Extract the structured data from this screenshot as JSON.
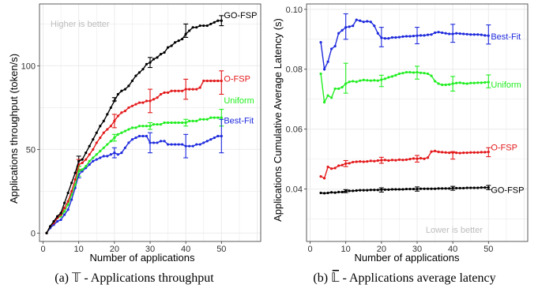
{
  "colors": {
    "GO-FSP": "#000000",
    "O-FSP": "#e31a1c",
    "Uniform": "#22ee22",
    "Best-Fit": "#1f2bdd",
    "grid": "#ebebeb",
    "panel_border": "#333333",
    "note": "#bdbdbd"
  },
  "captions": {
    "a": "(a) 𝕋 - Applications throughput",
    "b": "(b) 𝕃̅ - Applications average latency"
  },
  "chart_data": [
    {
      "type": "line",
      "xlabel": "Number of applications",
      "ylabel": "Applications throughput (token/s)",
      "annotation": "Higher is better",
      "xlim": [
        -1,
        61
      ],
      "ylim": [
        -5,
        137
      ],
      "x_ticks": [
        0,
        10,
        20,
        30,
        40,
        50
      ],
      "y_ticks": [
        0,
        50,
        100
      ],
      "x_tick_labels": [
        "0",
        "10",
        "20",
        "30",
        "40",
        "50"
      ],
      "y_tick_labels": [
        "0",
        "50",
        "100"
      ],
      "grid": true,
      "legend": "inline labels at line ends",
      "x": [
        1,
        2,
        3,
        4,
        5,
        6,
        7,
        8,
        9,
        10,
        11,
        12,
        13,
        14,
        15,
        16,
        17,
        18,
        19,
        20,
        21,
        22,
        23,
        24,
        25,
        26,
        27,
        28,
        29,
        30,
        31,
        32,
        33,
        34,
        35,
        36,
        37,
        38,
        39,
        40,
        41,
        42,
        43,
        44,
        45,
        46,
        47,
        48,
        49,
        50
      ],
      "series": [
        {
          "name": "GO-FSP",
          "values": [
            0,
            4,
            7,
            10,
            12,
            18,
            24,
            30,
            36,
            43,
            44,
            48,
            52,
            56,
            60,
            64,
            67,
            71,
            75,
            79,
            83,
            85,
            86,
            88,
            91,
            94,
            96,
            98,
            101,
            102,
            104,
            105,
            107,
            108,
            111,
            112,
            114,
            115,
            116,
            119,
            121,
            123,
            123,
            124,
            124,
            124,
            125,
            126,
            127,
            127
          ]
        },
        {
          "name": "O-FSP",
          "values": [
            0,
            4,
            6,
            9,
            11,
            15,
            19,
            25,
            32,
            41,
            42,
            44,
            47,
            50,
            54,
            57,
            60,
            62,
            64,
            67,
            70,
            72,
            73,
            75,
            76,
            77,
            78,
            78,
            79,
            79,
            80,
            81,
            83,
            84,
            84,
            85,
            85,
            85,
            85,
            86,
            86,
            86,
            86,
            87,
            91,
            91,
            91,
            91,
            91,
            91
          ]
        },
        {
          "name": "Uniform",
          "values": [
            0,
            4,
            7,
            9,
            10,
            13,
            17,
            23,
            29,
            37,
            38,
            40,
            43,
            45,
            47,
            49,
            51,
            53,
            55,
            57,
            59,
            60,
            61,
            62,
            63,
            63,
            64,
            64,
            64,
            64,
            65,
            65,
            65,
            66,
            66,
            66,
            66,
            66,
            66,
            66,
            67,
            67,
            67,
            68,
            68,
            68,
            69,
            69,
            69,
            69
          ]
        },
        {
          "name": "Best-Fit",
          "values": [
            0,
            3,
            5,
            7,
            8,
            11,
            14,
            20,
            27,
            35,
            37,
            39,
            41,
            43,
            44,
            45,
            46,
            46,
            47,
            48,
            47,
            48,
            51,
            54,
            56,
            57,
            58,
            58,
            58,
            54,
            54,
            54,
            55,
            55,
            53,
            53,
            53,
            53,
            53,
            52,
            52,
            52,
            53,
            53,
            54,
            55,
            56,
            57,
            58,
            58
          ]
        }
      ],
      "error_bars": [
        {
          "series": "GO-FSP",
          "x": [
            10,
            20,
            30,
            40,
            50
          ],
          "low": [
            40,
            79,
            99,
            117,
            124
          ],
          "high": [
            46,
            81,
            105,
            125,
            130
          ]
        },
        {
          "series": "O-FSP",
          "x": [
            10,
            20,
            30,
            40,
            50
          ],
          "low": [
            38,
            63,
            72,
            80,
            83
          ],
          "high": [
            44,
            71,
            86,
            92,
            97
          ]
        },
        {
          "series": "Uniform",
          "x": [
            10,
            20,
            30,
            40,
            50
          ],
          "low": [
            34,
            55,
            62,
            64,
            64
          ],
          "high": [
            40,
            59,
            66,
            68,
            74
          ]
        },
        {
          "series": "Best-Fit",
          "x": [
            10,
            20,
            30,
            40,
            50
          ],
          "low": [
            33,
            45,
            48,
            45,
            48
          ],
          "high": [
            37,
            51,
            60,
            59,
            68
          ]
        }
      ]
    },
    {
      "type": "line",
      "xlabel": "Number of applications",
      "ylabel": "Applications Cumulative Average Latency (s)",
      "annotation": "Lower is better",
      "xlim": [
        -1,
        61
      ],
      "ylim": [
        0.0225,
        0.1018
      ],
      "x_ticks": [
        0,
        10,
        20,
        30,
        40,
        50
      ],
      "y_ticks": [
        0.04,
        0.06,
        0.08,
        0.1
      ],
      "x_tick_labels": [
        "0",
        "10",
        "20",
        "30",
        "40",
        "50"
      ],
      "y_tick_labels": [
        "0.04",
        "0.06",
        "0.08",
        "0.10"
      ],
      "grid": true,
      "legend": "inline labels at line ends",
      "x": [
        3,
        4,
        5,
        6,
        7,
        8,
        9,
        10,
        11,
        12,
        13,
        14,
        15,
        16,
        17,
        18,
        19,
        20,
        21,
        22,
        23,
        24,
        25,
        26,
        27,
        28,
        29,
        30,
        31,
        32,
        33,
        34,
        35,
        36,
        37,
        38,
        39,
        40,
        41,
        42,
        43,
        44,
        45,
        46,
        47,
        48,
        49,
        50
      ],
      "series": [
        {
          "name": "GO-FSP",
          "values": [
            0.0387,
            0.0386,
            0.0387,
            0.0389,
            0.0388,
            0.039,
            0.039,
            0.0393,
            0.0394,
            0.0394,
            0.0395,
            0.0396,
            0.0396,
            0.0396,
            0.0397,
            0.0397,
            0.0397,
            0.0398,
            0.0398,
            0.0398,
            0.0399,
            0.0399,
            0.0399,
            0.0399,
            0.04,
            0.04,
            0.04,
            0.04,
            0.0401,
            0.0401,
            0.0401,
            0.0401,
            0.0401,
            0.0402,
            0.0402,
            0.0402,
            0.0402,
            0.0403,
            0.0403,
            0.0403,
            0.0403,
            0.0404,
            0.0404,
            0.0404,
            0.0404,
            0.0405,
            0.0405,
            0.0405
          ]
        },
        {
          "name": "O-FSP",
          "values": [
            0.0442,
            0.0436,
            0.0474,
            0.0468,
            0.047,
            0.0478,
            0.048,
            0.0485,
            0.0486,
            0.049,
            0.0491,
            0.0492,
            0.0491,
            0.0492,
            0.0494,
            0.0493,
            0.0495,
            0.0496,
            0.0497,
            0.0495,
            0.0497,
            0.0496,
            0.0498,
            0.0497,
            0.0498,
            0.05,
            0.0502,
            0.0501,
            0.0503,
            0.0501,
            0.0505,
            0.0525,
            0.0527,
            0.0524,
            0.0523,
            0.0522,
            0.0521,
            0.0522,
            0.0521,
            0.052,
            0.0521,
            0.0521,
            0.0522,
            0.0522,
            0.0522,
            0.0523,
            0.0523,
            0.0524
          ]
        },
        {
          "name": "Uniform",
          "values": [
            0.0785,
            0.069,
            0.0712,
            0.0705,
            0.0735,
            0.0735,
            0.074,
            0.0752,
            0.0758,
            0.076,
            0.0758,
            0.0762,
            0.0764,
            0.0763,
            0.0762,
            0.0763,
            0.0762,
            0.0765,
            0.0768,
            0.0773,
            0.0776,
            0.078,
            0.0785,
            0.0787,
            0.079,
            0.079,
            0.0789,
            0.079,
            0.0788,
            0.0787,
            0.0785,
            0.0778,
            0.076,
            0.0752,
            0.0748,
            0.0748,
            0.0749,
            0.0752,
            0.0754,
            0.0755,
            0.0753,
            0.0752,
            0.0754,
            0.0754,
            0.0755,
            0.0755,
            0.0756,
            0.0757
          ]
        },
        {
          "name": "Best-Fit",
          "values": [
            0.089,
            0.08,
            0.0825,
            0.0868,
            0.0877,
            0.092,
            0.093,
            0.094,
            0.0942,
            0.0945,
            0.0965,
            0.0962,
            0.0958,
            0.096,
            0.0958,
            0.0945,
            0.092,
            0.0905,
            0.0903,
            0.0903,
            0.0906,
            0.0906,
            0.0907,
            0.0909,
            0.091,
            0.091,
            0.0911,
            0.0912,
            0.0913,
            0.0913,
            0.0915,
            0.0916,
            0.0922,
            0.0924,
            0.0922,
            0.092,
            0.0918,
            0.0918,
            0.092,
            0.0919,
            0.0918,
            0.0917,
            0.0916,
            0.0916,
            0.0916,
            0.0915,
            0.0913,
            0.0912
          ]
        }
      ],
      "error_bars": [
        {
          "series": "GO-FSP",
          "x": [
            10,
            20,
            30,
            40,
            50
          ],
          "low": [
            0.0388,
            0.039,
            0.0393,
            0.0396,
            0.0398
          ],
          "high": [
            0.0398,
            0.0404,
            0.0407,
            0.0409,
            0.0412
          ]
        },
        {
          "series": "O-FSP",
          "x": [
            10,
            20,
            30,
            40,
            50
          ],
          "low": [
            0.0475,
            0.0486,
            0.049,
            0.05,
            0.0508
          ],
          "high": [
            0.0495,
            0.0506,
            0.0512,
            0.0525,
            0.0538
          ]
        },
        {
          "series": "Uniform",
          "x": [
            10,
            20,
            30,
            40,
            50
          ],
          "low": [
            0.072,
            0.0742,
            0.0767,
            0.0727,
            0.0738
          ],
          "high": [
            0.082,
            0.078,
            0.081,
            0.0776,
            0.0781
          ]
        },
        {
          "series": "Best-Fit",
          "x": [
            10,
            20,
            30,
            40,
            50
          ],
          "low": [
            0.09,
            0.0875,
            0.0885,
            0.089,
            0.0884
          ],
          "high": [
            0.0985,
            0.094,
            0.094,
            0.095,
            0.0948
          ]
        }
      ]
    }
  ]
}
